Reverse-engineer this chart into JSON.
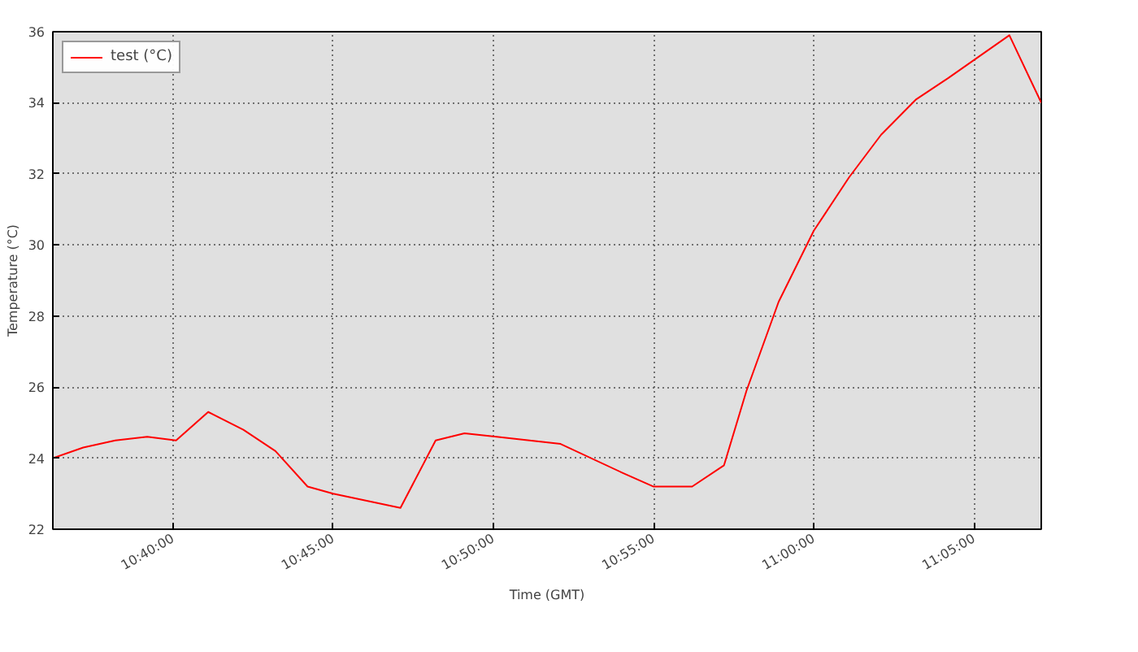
{
  "chart_data": {
    "type": "line",
    "xlabel": "Time (GMT)",
    "ylabel": "Temperature (°C)",
    "x": [
      10.6042,
      10.62,
      10.6367,
      10.6533,
      10.6683,
      10.685,
      10.7033,
      10.72,
      10.7367,
      10.75,
      10.785,
      10.8033,
      10.8183,
      10.835,
      10.8683,
      10.9,
      10.9167,
      10.9367,
      10.9533,
      10.965,
      10.9817,
      11.0,
      11.0183,
      11.035,
      11.0533,
      11.07,
      11.1017,
      11.1183
    ],
    "series": [
      {
        "name": "test (°C)",
        "color": "#ff0000",
        "values": [
          24.0,
          24.3,
          24.5,
          24.6,
          24.5,
          25.3,
          24.8,
          24.2,
          23.2,
          23.0,
          22.6,
          24.5,
          24.7,
          24.6,
          24.4,
          23.6,
          23.2,
          23.2,
          23.8,
          25.9,
          28.4,
          30.4,
          31.9,
          33.1,
          34.1,
          34.7,
          35.9,
          34.0
        ]
      }
    ],
    "xlim": [
      10.6042,
      11.1183
    ],
    "ylim": [
      22,
      36
    ],
    "xticks": [
      {
        "value": 10.6667,
        "label": "10:40:00"
      },
      {
        "value": 10.75,
        "label": "10:45:00"
      },
      {
        "value": 10.8333,
        "label": "10:50:00"
      },
      {
        "value": 10.9167,
        "label": "10:55:00"
      },
      {
        "value": 11.0,
        "label": "11:00:00"
      },
      {
        "value": 11.0833,
        "label": "11:05:00"
      }
    ],
    "yticks": [
      22,
      24,
      26,
      28,
      30,
      32,
      34,
      36
    ],
    "grid": true,
    "legend": "top left",
    "marker": "none",
    "line_style": "solid"
  }
}
